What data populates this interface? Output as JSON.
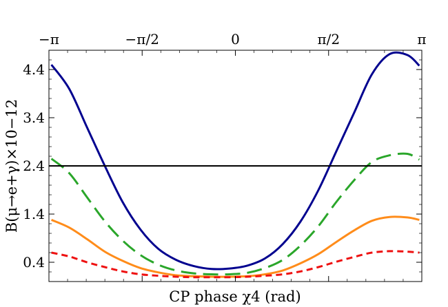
{
  "chart_data": {
    "type": "line",
    "xlabel": "CP phase χ4 (rad)",
    "ylabel": "B(μ→e+γ)×10−12",
    "xlim": [
      -3.14159,
      3.14159
    ],
    "ylim": [
      0.0,
      4.8
    ],
    "top_ticks": [
      {
        "value": -3.14159,
        "label": "−π"
      },
      {
        "value": -1.5708,
        "label": "−π/2"
      },
      {
        "value": 0,
        "label": "0"
      },
      {
        "value": 1.5708,
        "label": "π/2"
      },
      {
        "value": 3.14159,
        "label": "π"
      }
    ],
    "y_ticks": [
      {
        "value": 0.4,
        "label": "0.4"
      },
      {
        "value": 1.4,
        "label": "1.4"
      },
      {
        "value": 2.4,
        "label": "2.4"
      },
      {
        "value": 3.4,
        "label": "3.4"
      },
      {
        "value": 4.4,
        "label": "4.4"
      }
    ],
    "grid": false,
    "series": [
      {
        "style": "solid",
        "color": "#00008f",
        "x": [
          -3.1,
          -2.8,
          -2.5,
          -2.2,
          -1.9,
          -1.6,
          -1.3,
          -1.0,
          -0.7,
          -0.4,
          -0.1,
          0.2,
          0.5,
          0.8,
          1.1,
          1.4,
          1.7,
          2.0,
          2.3,
          2.6,
          2.9,
          3.1
        ],
        "y": [
          4.5,
          4.0,
          3.2,
          2.4,
          1.65,
          1.08,
          0.68,
          0.45,
          0.32,
          0.26,
          0.27,
          0.33,
          0.48,
          0.78,
          1.25,
          1.9,
          2.7,
          3.5,
          4.3,
          4.72,
          4.7,
          4.48
        ]
      },
      {
        "style": "dashed",
        "color": "#2aa62a",
        "x": [
          -3.1,
          -2.8,
          -2.5,
          -2.2,
          -1.9,
          -1.6,
          -1.3,
          -1.0,
          -0.7,
          -0.4,
          -0.1,
          0.2,
          0.5,
          0.8,
          1.1,
          1.4,
          1.7,
          2.0,
          2.3,
          2.6,
          2.9,
          3.1
        ],
        "y": [
          2.55,
          2.25,
          1.75,
          1.25,
          0.85,
          0.55,
          0.35,
          0.23,
          0.17,
          0.15,
          0.15,
          0.18,
          0.28,
          0.45,
          0.75,
          1.15,
          1.65,
          2.1,
          2.48,
          2.62,
          2.65,
          2.53
        ]
      },
      {
        "style": "solid",
        "color": "#ff8c1a",
        "x": [
          -3.1,
          -2.8,
          -2.5,
          -2.2,
          -1.9,
          -1.6,
          -1.3,
          -1.0,
          -0.7,
          -0.4,
          -0.1,
          0.2,
          0.5,
          0.8,
          1.1,
          1.4,
          1.7,
          2.0,
          2.3,
          2.6,
          2.9,
          3.1
        ],
        "y": [
          1.28,
          1.12,
          0.88,
          0.62,
          0.43,
          0.28,
          0.19,
          0.13,
          0.11,
          0.1,
          0.1,
          0.11,
          0.15,
          0.23,
          0.38,
          0.57,
          0.82,
          1.06,
          1.26,
          1.34,
          1.33,
          1.28
        ]
      },
      {
        "style": "dotted",
        "color": "#ee1111",
        "x": [
          -3.1,
          -2.8,
          -2.5,
          -2.2,
          -1.9,
          -1.6,
          -1.3,
          -1.0,
          -0.7,
          -0.4,
          -0.1,
          0.2,
          0.5,
          0.8,
          1.1,
          1.4,
          1.7,
          2.0,
          2.3,
          2.6,
          2.9,
          3.1
        ],
        "y": [
          0.6,
          0.52,
          0.4,
          0.3,
          0.21,
          0.15,
          0.12,
          0.1,
          0.09,
          0.09,
          0.09,
          0.1,
          0.12,
          0.15,
          0.21,
          0.3,
          0.41,
          0.51,
          0.6,
          0.63,
          0.62,
          0.6
        ]
      },
      {
        "style": "solid",
        "color": "#000000",
        "x": [
          -3.14159,
          3.14159
        ],
        "y": [
          2.4,
          2.4
        ]
      }
    ]
  }
}
